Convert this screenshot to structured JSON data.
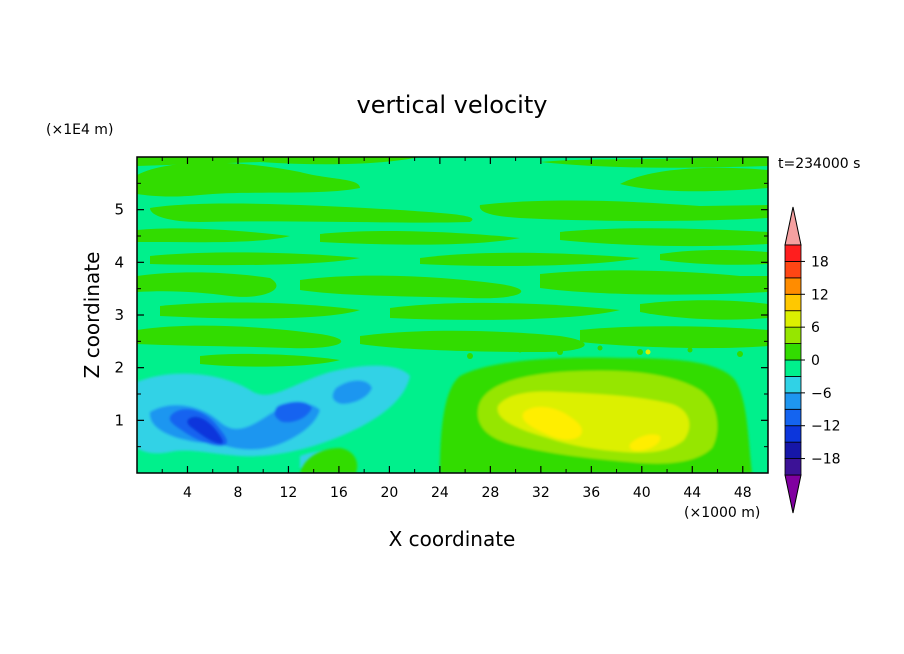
{
  "chart_data": {
    "type": "heatmap",
    "title": "vertical velocity",
    "xlabel": "X coordinate",
    "ylabel": "Z coordinate",
    "x_unit": "(×1000 m)",
    "y_unit": "(×1E4 m)",
    "time_label": "t=234000 s",
    "xlim": [
      0,
      50
    ],
    "ylim": [
      0,
      6
    ],
    "x_ticks": [
      4,
      8,
      12,
      16,
      20,
      24,
      28,
      32,
      36,
      40,
      44,
      48
    ],
    "y_ticks": [
      1,
      2,
      3,
      4,
      5
    ],
    "colorbar": {
      "levels": [
        -21,
        -18,
        -15,
        -12,
        -9,
        -6,
        -3,
        0,
        3,
        6,
        9,
        12,
        15,
        18,
        21
      ],
      "tick_labels": [
        18,
        12,
        6,
        0,
        -6,
        -12,
        -18
      ],
      "colors": [
        "#8000a0",
        "#3c1296",
        "#1616a8",
        "#0c36dc",
        "#1464f0",
        "#1e96f0",
        "#30d2e6",
        "#00f08c",
        "#32dc00",
        "#96e600",
        "#dcf000",
        "#ffc800",
        "#ff8c00",
        "#ff4614",
        "#ff1e1e",
        "#f5a0a0"
      ]
    },
    "features": [
      {
        "type": "downdraft",
        "x": 6,
        "z": 0.95,
        "min_value": -11
      },
      {
        "type": "downdraft",
        "x": 13,
        "z": 1.25,
        "min_value": -7
      },
      {
        "type": "downdraft",
        "x": 18,
        "z": 1.6,
        "min_value": -7
      },
      {
        "type": "updraft",
        "x": 34,
        "z": 1.0,
        "max_value": 8
      },
      {
        "type": "updraft",
        "x": 40,
        "z": 0.6,
        "max_value": 7
      }
    ]
  }
}
